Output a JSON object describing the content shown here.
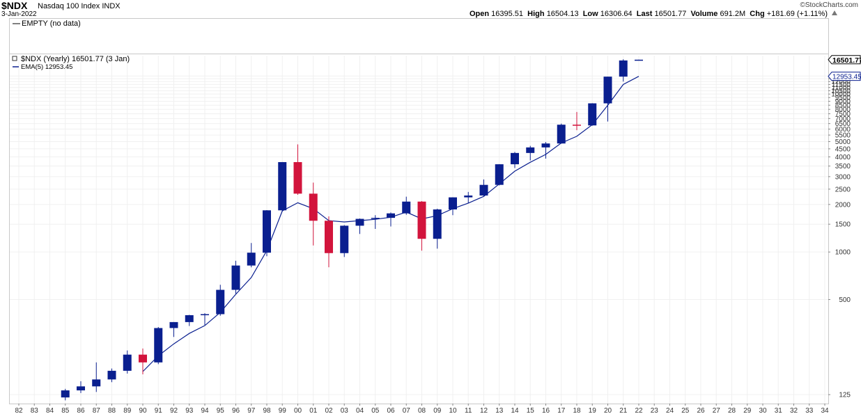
{
  "header": {
    "symbol": "$NDX",
    "name": "Nasdaq 100 Index  INDX",
    "date": "3-Jan-2022",
    "brand": "©StockCharts.com",
    "open_label": "Open",
    "open": "16395.51",
    "high_label": "High",
    "high": "16504.13",
    "low_label": "Low",
    "low": "16306.64",
    "last_label": "Last",
    "last": "16501.77",
    "volume_label": "Volume",
    "volume": "691.2M",
    "chg_label": "Chg",
    "chg": "+181.69 (+1.11%)"
  },
  "upper_panel": {
    "legend": "EMPTY (no data)"
  },
  "main_panel": {
    "legend_title": "$NDX (Yearly) 16501.77 (3 Jan)",
    "legend_ema": "EMA(5) 12953.45",
    "last_value_tag": "16501.77",
    "ema_value_tag": "12953.45"
  },
  "chart_data": {
    "type": "candlestick",
    "scale": "log",
    "period": "yearly",
    "ylim": [
      112,
      17500
    ],
    "x_ticks": [
      "82",
      "83",
      "84",
      "85",
      "86",
      "87",
      "88",
      "89",
      "90",
      "91",
      "92",
      "93",
      "94",
      "95",
      "96",
      "97",
      "98",
      "99",
      "00",
      "01",
      "02",
      "03",
      "04",
      "05",
      "06",
      "07",
      "08",
      "09",
      "10",
      "11",
      "12",
      "13",
      "14",
      "15",
      "16",
      "17",
      "18",
      "19",
      "20",
      "21",
      "22",
      "23",
      "24",
      "25",
      "26",
      "27",
      "28",
      "29",
      "30",
      "31",
      "32",
      "33",
      "34"
    ],
    "y_ticks": [
      125,
      500,
      1000,
      1500,
      2000,
      2500,
      3000,
      3500,
      4000,
      4500,
      5000,
      5500,
      6000,
      6500,
      7000,
      7500,
      8000,
      8500,
      9000,
      9500,
      10000,
      10500,
      11000,
      11500,
      12000,
      12500,
      13000
    ],
    "up_color": "#0a1f8f",
    "down_color": "#d2143c",
    "ema_color": "#0a1f8f",
    "candles": [
      {
        "year": "85",
        "open": 120,
        "high": 136,
        "low": 115,
        "close": 133
      },
      {
        "year": "86",
        "open": 133,
        "high": 152,
        "low": 128,
        "close": 141
      },
      {
        "year": "87",
        "open": 141,
        "high": 200,
        "low": 130,
        "close": 156
      },
      {
        "year": "88",
        "open": 156,
        "high": 183,
        "low": 150,
        "close": 177
      },
      {
        "year": "89",
        "open": 177,
        "high": 238,
        "low": 170,
        "close": 224
      },
      {
        "year": "90",
        "open": 224,
        "high": 245,
        "low": 168,
        "close": 200
      },
      {
        "year": "91",
        "open": 200,
        "high": 335,
        "low": 195,
        "close": 330
      },
      {
        "year": "92",
        "open": 330,
        "high": 360,
        "low": 290,
        "close": 360
      },
      {
        "year": "93",
        "open": 360,
        "high": 400,
        "low": 340,
        "close": 398
      },
      {
        "year": "94",
        "open": 398,
        "high": 410,
        "low": 345,
        "close": 404
      },
      {
        "year": "95",
        "open": 404,
        "high": 620,
        "low": 395,
        "close": 576
      },
      {
        "year": "96",
        "open": 576,
        "high": 880,
        "low": 545,
        "close": 821
      },
      {
        "year": "97",
        "open": 821,
        "high": 1140,
        "low": 800,
        "close": 990
      },
      {
        "year": "98",
        "open": 990,
        "high": 1840,
        "low": 940,
        "close": 1836
      },
      {
        "year": "99",
        "open": 1836,
        "high": 3710,
        "low": 1800,
        "close": 3708
      },
      {
        "year": "00",
        "open": 3708,
        "high": 4800,
        "low": 2300,
        "close": 2341
      },
      {
        "year": "01",
        "open": 2341,
        "high": 2750,
        "low": 1100,
        "close": 1577
      },
      {
        "year": "02",
        "open": 1577,
        "high": 1680,
        "low": 800,
        "close": 984
      },
      {
        "year": "03",
        "open": 984,
        "high": 1480,
        "low": 930,
        "close": 1467
      },
      {
        "year": "04",
        "open": 1467,
        "high": 1630,
        "low": 1300,
        "close": 1621
      },
      {
        "year": "05",
        "open": 1621,
        "high": 1710,
        "low": 1400,
        "close": 1645
      },
      {
        "year": "06",
        "open": 1645,
        "high": 1780,
        "low": 1450,
        "close": 1756
      },
      {
        "year": "07",
        "open": 1756,
        "high": 2240,
        "low": 1720,
        "close": 2085
      },
      {
        "year": "08",
        "open": 2085,
        "high": 2100,
        "low": 1020,
        "close": 1212
      },
      {
        "year": "09",
        "open": 1212,
        "high": 1880,
        "low": 1050,
        "close": 1860
      },
      {
        "year": "10",
        "open": 1860,
        "high": 2220,
        "low": 1710,
        "close": 2218
      },
      {
        "year": "11",
        "open": 2218,
        "high": 2400,
        "low": 2040,
        "close": 2278
      },
      {
        "year": "12",
        "open": 2278,
        "high": 2880,
        "low": 2260,
        "close": 2661
      },
      {
        "year": "13",
        "open": 2661,
        "high": 3600,
        "low": 2640,
        "close": 3593
      },
      {
        "year": "14",
        "open": 3593,
        "high": 4300,
        "low": 3400,
        "close": 4236
      },
      {
        "year": "15",
        "open": 4236,
        "high": 4700,
        "low": 3800,
        "close": 4593
      },
      {
        "year": "16",
        "open": 4593,
        "high": 4970,
        "low": 3900,
        "close": 4864
      },
      {
        "year": "17",
        "open": 4864,
        "high": 6500,
        "low": 4850,
        "close": 6397
      },
      {
        "year": "18",
        "open": 6397,
        "high": 7700,
        "low": 5900,
        "close": 6330
      },
      {
        "year": "19",
        "open": 6330,
        "high": 8750,
        "low": 6300,
        "close": 8733
      },
      {
        "year": "20",
        "open": 8733,
        "high": 12900,
        "low": 6700,
        "close": 12888
      },
      {
        "year": "21",
        "open": 12888,
        "high": 16600,
        "low": 12000,
        "close": 16320
      },
      {
        "year": "22",
        "open": 16395.51,
        "high": 16504.13,
        "low": 16306.64,
        "close": 16501.77
      }
    ],
    "ema": {
      "name": "EMA(5)",
      "x": [
        "90",
        "91",
        "92",
        "93",
        "94",
        "95",
        "96",
        "97",
        "98",
        "99",
        "00",
        "01",
        "02",
        "03",
        "04",
        "05",
        "06",
        "07",
        "08",
        "09",
        "10",
        "11",
        "12",
        "13",
        "14",
        "15",
        "16",
        "17",
        "18",
        "19",
        "20",
        "21",
        "22"
      ],
      "values": [
        175,
        220,
        262,
        305,
        342,
        415,
        540,
        690,
        1020,
        1820,
        2050,
        1880,
        1580,
        1550,
        1580,
        1610,
        1660,
        1790,
        1620,
        1700,
        1880,
        2040,
        2250,
        2700,
        3250,
        3700,
        4150,
        4900,
        5400,
        6400,
        8500,
        11500,
        12953.45
      ]
    }
  }
}
